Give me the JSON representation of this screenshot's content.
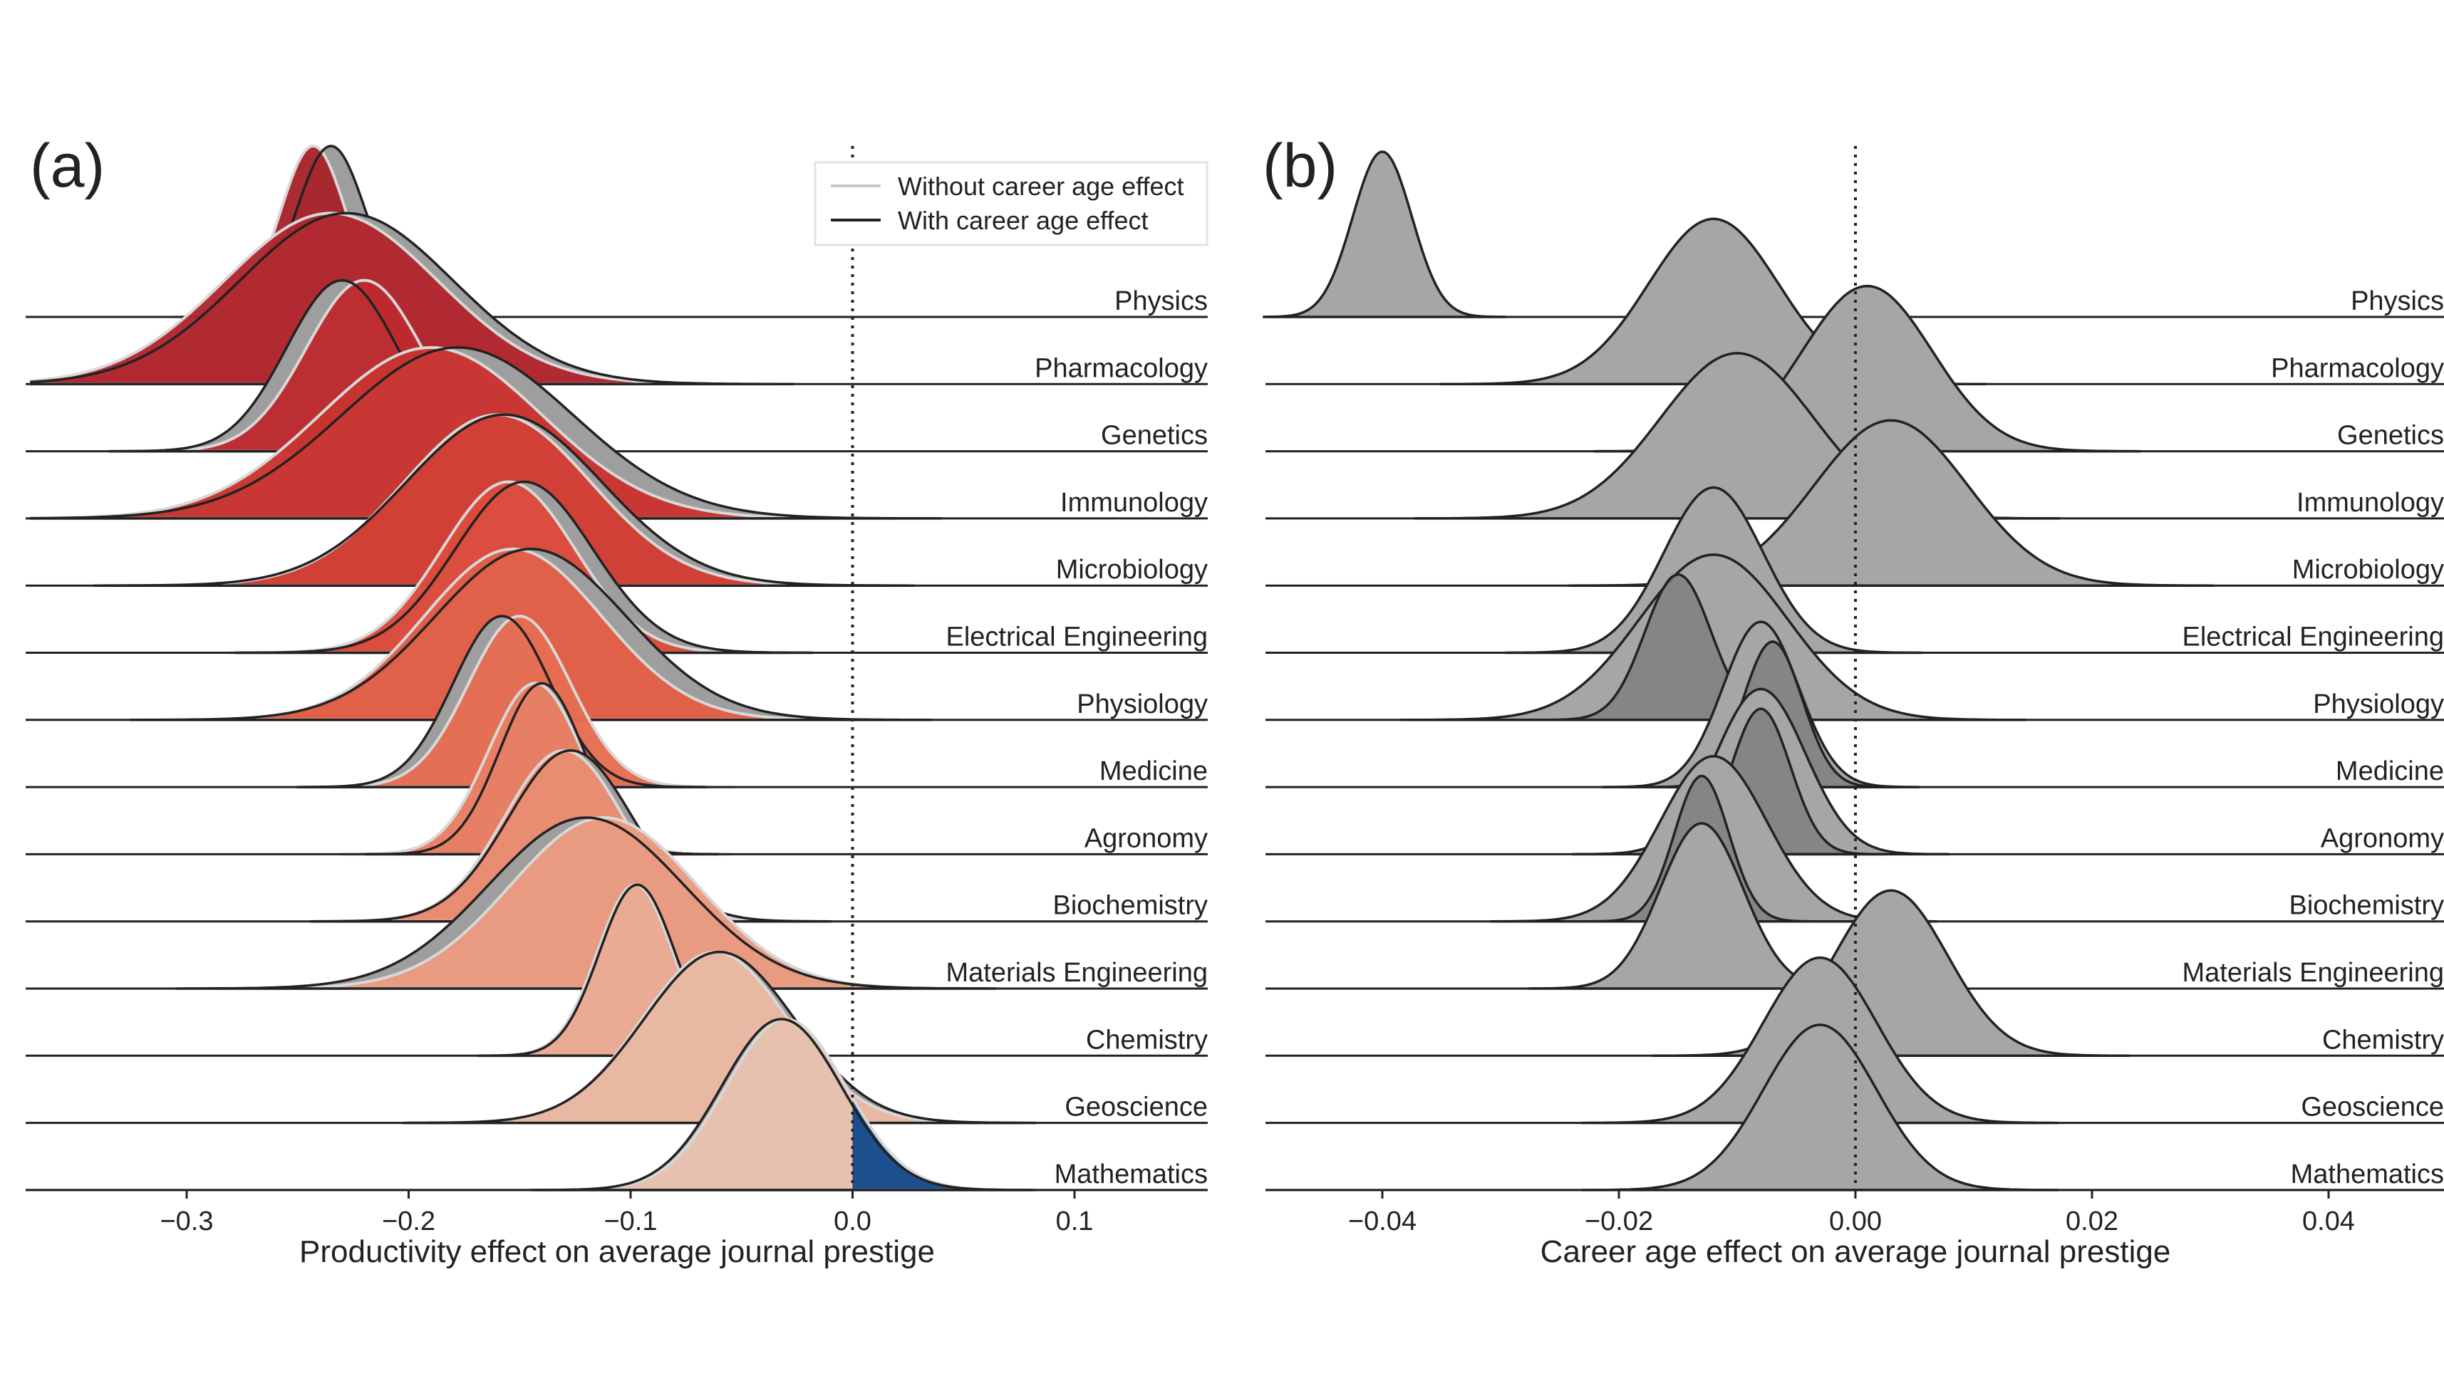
{
  "chart_data": [
    {
      "panel_label": "(a)",
      "type": "ridgeline",
      "xlabel": "Productivity effect on average journal prestige",
      "xlim": [
        -0.37,
        0.16
      ],
      "xticks": [
        -0.3,
        -0.2,
        -0.1,
        0.0,
        0.1
      ],
      "tick_labels": [
        "−0.3",
        "−0.2",
        "−0.1",
        "0.0",
        "0.1"
      ],
      "reference_line_x": 0,
      "legend": {
        "placement": "top-right",
        "entries": [
          {
            "label": "Without career age effect",
            "color": "#cccccc"
          },
          {
            "label": "With career age effect",
            "color": "#222222"
          }
        ]
      },
      "fields": [
        {
          "name": "Physics",
          "without": {
            "mean": -0.243,
            "sd": 0.015
          },
          "with": {
            "mean": -0.235,
            "sd": 0.016
          },
          "color": "#a8242b"
        },
        {
          "name": "Pharmacology",
          "without": {
            "mean": -0.235,
            "sd": 0.048
          },
          "with": {
            "mean": -0.228,
            "sd": 0.048
          },
          "color": "#b2262d"
        },
        {
          "name": "Genetics",
          "without": {
            "mean": -0.22,
            "sd": 0.026
          },
          "with": {
            "mean": -0.23,
            "sd": 0.025
          },
          "color": "#bd2a2e"
        },
        {
          "name": "Immunology",
          "without": {
            "mean": -0.19,
            "sd": 0.05
          },
          "with": {
            "mean": -0.178,
            "sd": 0.052
          },
          "color": "#c9342f"
        },
        {
          "name": "Microbiology",
          "without": {
            "mean": -0.16,
            "sd": 0.042
          },
          "with": {
            "mean": -0.157,
            "sd": 0.044
          },
          "color": "#d33d33"
        },
        {
          "name": "Electrical Engineering",
          "without": {
            "mean": -0.155,
            "sd": 0.03
          },
          "with": {
            "mean": -0.148,
            "sd": 0.031
          },
          "color": "#dc4a3c"
        },
        {
          "name": "Physiology",
          "without": {
            "mean": -0.153,
            "sd": 0.04
          },
          "with": {
            "mean": -0.145,
            "sd": 0.043
          },
          "color": "#e25e47"
        },
        {
          "name": "Medicine",
          "without": {
            "mean": -0.15,
            "sd": 0.023
          },
          "with": {
            "mean": -0.158,
            "sd": 0.022
          },
          "color": "#e66d53"
        },
        {
          "name": "Agronomy",
          "without": {
            "mean": -0.143,
            "sd": 0.021
          },
          "with": {
            "mean": -0.14,
            "sd": 0.019
          },
          "color": "#e97e63"
        },
        {
          "name": "Biochemistry",
          "without": {
            "mean": -0.13,
            "sd": 0.027
          },
          "with": {
            "mean": -0.127,
            "sd": 0.028
          },
          "color": "#ea8c70"
        },
        {
          "name": "Materials Engineering",
          "without": {
            "mean": -0.112,
            "sd": 0.042
          },
          "with": {
            "mean": -0.12,
            "sd": 0.044
          },
          "color": "#eb9b80"
        },
        {
          "name": "Chemistry",
          "without": {
            "mean": -0.098,
            "sd": 0.017
          },
          "with": {
            "mean": -0.097,
            "sd": 0.017
          },
          "color": "#ebab93"
        },
        {
          "name": "Geoscience",
          "without": {
            "mean": -0.062,
            "sd": 0.033
          },
          "with": {
            "mean": -0.06,
            "sd": 0.034
          },
          "color": "#ebb9a3"
        },
        {
          "name": "Mathematics",
          "without": {
            "mean": -0.03,
            "sd": 0.027
          },
          "with": {
            "mean": -0.032,
            "sd": 0.027
          },
          "color": "#e8c2b0",
          "positive_color": "#1d4f8f"
        }
      ]
    },
    {
      "panel_label": "(b)",
      "type": "ridgeline",
      "xlabel": "Career age effect on average journal prestige",
      "xlim": [
        -0.05,
        0.05
      ],
      "xticks": [
        -0.04,
        -0.02,
        0.0,
        0.02,
        0.04
      ],
      "tick_labels": [
        "−0.04",
        "−0.02",
        "0.00",
        "0.02",
        "0.04"
      ],
      "reference_line_x": 0,
      "fields": [
        {
          "name": "Physics",
          "mean": -0.04,
          "sd": 0.0025
        },
        {
          "name": "Pharmacology",
          "mean": -0.012,
          "sd": 0.0055
        },
        {
          "name": "Genetics",
          "mean": 0.001,
          "sd": 0.0055
        },
        {
          "name": "Immunology",
          "mean": -0.01,
          "sd": 0.0065
        },
        {
          "name": "Microbiology",
          "mean": 0.003,
          "sd": 0.0065
        },
        {
          "name": "Electrical Engineering",
          "mean": -0.012,
          "sd": 0.0042
        },
        {
          "name": "Physiology",
          "mean": -0.012,
          "sd": 0.0063,
          "inner": {
            "mean": -0.015,
            "sd": 0.0028
          }
        },
        {
          "name": "Medicine",
          "mean": -0.008,
          "sd": 0.0032,
          "inner": {
            "mean": -0.007,
            "sd": 0.0025
          }
        },
        {
          "name": "Agronomy",
          "mean": -0.008,
          "sd": 0.0038,
          "inner": {
            "mean": -0.008,
            "sd": 0.0025
          }
        },
        {
          "name": "Biochemistry",
          "mean": -0.012,
          "sd": 0.0045,
          "inner": {
            "mean": -0.013,
            "sd": 0.0023
          }
        },
        {
          "name": "Materials Engineering",
          "mean": -0.013,
          "sd": 0.0035
        },
        {
          "name": "Chemistry",
          "mean": 0.003,
          "sd": 0.0048
        },
        {
          "name": "Geoscience",
          "mean": -0.003,
          "sd": 0.0048
        },
        {
          "name": "Mathematics",
          "mean": -0.003,
          "sd": 0.0048
        }
      ]
    }
  ]
}
